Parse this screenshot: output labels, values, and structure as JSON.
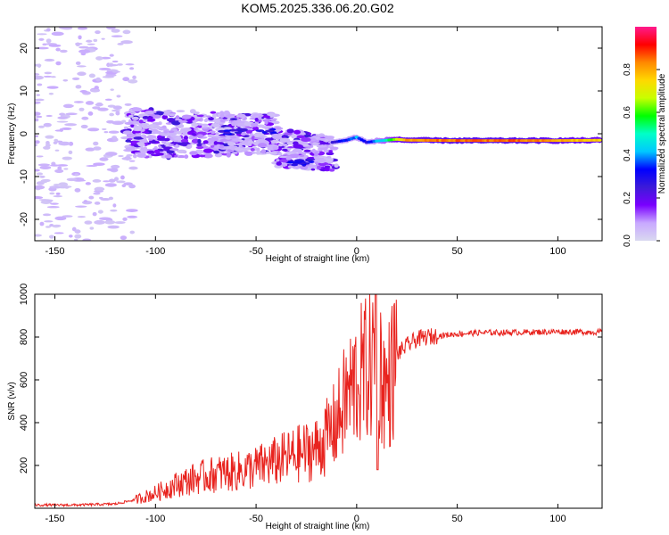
{
  "title": "KOM5.2025.336.06.20.G02",
  "colors": {
    "snr_line": "#e8231e",
    "axis": "#000000",
    "colorbar_stops": [
      "#d9d9f0",
      "#c8a8ff",
      "#7a00ff",
      "#3d1bd8",
      "#0000ff",
      "#00c8ff",
      "#00ffc8",
      "#00ff00",
      "#c8ff00",
      "#ffd800",
      "#ff8800",
      "#ff0000",
      "#ff1a8c"
    ]
  },
  "chart_data": [
    {
      "type": "heatmap",
      "title": "KOM5.2025.336.06.20.G02",
      "xlabel": "Height of straight line (km)",
      "ylabel": "Frequency (Hz)",
      "xlim": [
        -160,
        122
      ],
      "ylim": [
        -25,
        25
      ],
      "x_ticks": [
        -150,
        -100,
        -50,
        0,
        50,
        100
      ],
      "y_ticks": [
        -20,
        -10,
        0,
        10,
        20
      ],
      "colorbar": {
        "label": "Normalized spectral amplitude",
        "range": [
          0,
          1
        ],
        "ticks": [
          0.0,
          0.2,
          0.4,
          0.6,
          0.8
        ]
      },
      "strong_trace": {
        "description": "dominant frequency track",
        "x": [
          -12,
          -5,
          0,
          5,
          10,
          15,
          20,
          25,
          50,
          75,
          100,
          122
        ],
        "freq": [
          -2,
          -1.5,
          -0.8,
          -2,
          -1.7,
          -1.5,
          -1.3,
          -1.5,
          -1.6,
          -1.6,
          -1.6,
          -1.5
        ],
        "amplitude": [
          0.25,
          0.35,
          0.4,
          0.3,
          0.4,
          0.5,
          0.7,
          0.8,
          0.85,
          0.85,
          0.8,
          0.75
        ]
      }
    },
    {
      "type": "line",
      "xlabel": "Height of straight line (km)",
      "ylabel": "SNR (v/v)",
      "xlim": [
        -160,
        122
      ],
      "ylim": [
        0,
        1000
      ],
      "x_ticks": [
        -150,
        -100,
        -50,
        0,
        50,
        100
      ],
      "y_ticks": [
        200,
        400,
        600,
        800,
        1000
      ],
      "series": [
        {
          "name": "SNR",
          "x": [
            -160,
            -140,
            -120,
            -110,
            -100,
            -90,
            -80,
            -70,
            -60,
            -50,
            -40,
            -30,
            -20,
            -15,
            -10,
            -5,
            0,
            5,
            10,
            15,
            20,
            25,
            30,
            35,
            40,
            50,
            60,
            80,
            100,
            122
          ],
          "y": [
            15,
            15,
            20,
            40,
            70,
            110,
            140,
            160,
            170,
            190,
            220,
            250,
            280,
            330,
            400,
            520,
            600,
            650,
            700,
            550,
            720,
            760,
            790,
            800,
            805,
            815,
            820,
            822,
            825,
            823
          ]
        }
      ]
    }
  ]
}
